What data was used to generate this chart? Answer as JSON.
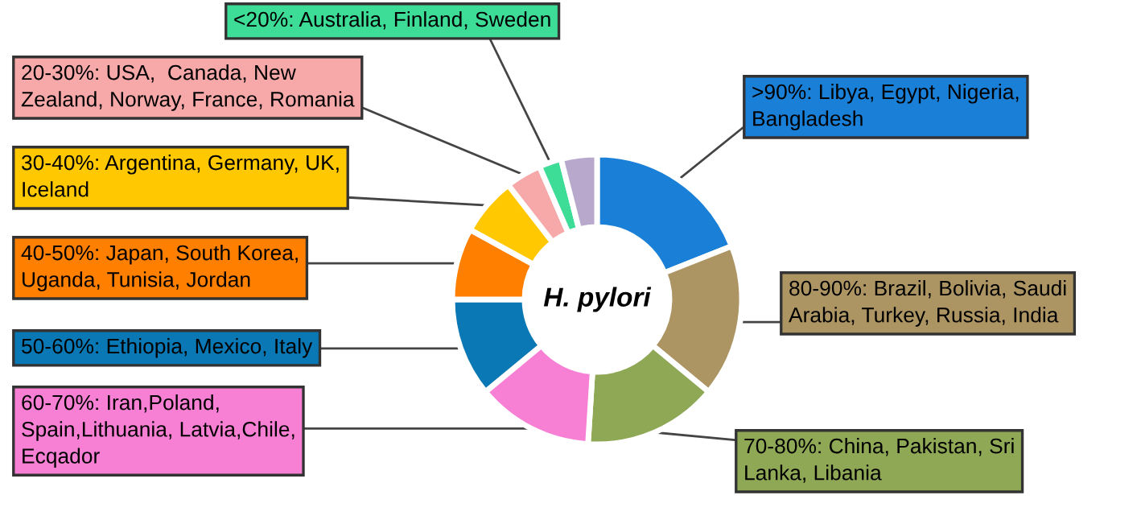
{
  "chart_data": {
    "type": "donut",
    "title": "H. pylori",
    "categories": [
      ">90%: Libya, Egypt, Nigeria,\nBangladesh",
      "80-90%: Brazil, Bolivia, Saudi\nArabia, Turkey, Russia, India",
      "70-80%: China, Pakistan, Sri\nLanka, Libania",
      "60-70%: Iran,Poland,\nSpain,Lithuania, Latvia,Chile,\nEcqador",
      "50-60%: Ethiopia, Mexico, Italy",
      "40-50%: Japan, South Korea,\nUganda, Tunisia, Jordan",
      "30-40%: Argentina, Germany, UK,\nIceland",
      "20-30%: USA,  Canada, New\nZealand, Norway, France, Romania",
      "<20%: Australia, Finland, Sweden",
      null
    ],
    "values": [
      19,
      17,
      15,
      13,
      11,
      8,
      6.5,
      4,
      2.5,
      4
    ],
    "colors": [
      "#1a7fd6",
      "#ad9563",
      "#8fa855",
      "#f77fd4",
      "#0a78b4",
      "#ff7f00",
      "#ffc800",
      "#f7a8a8",
      "#3ddc97",
      "#b8a8cc"
    ]
  }
}
